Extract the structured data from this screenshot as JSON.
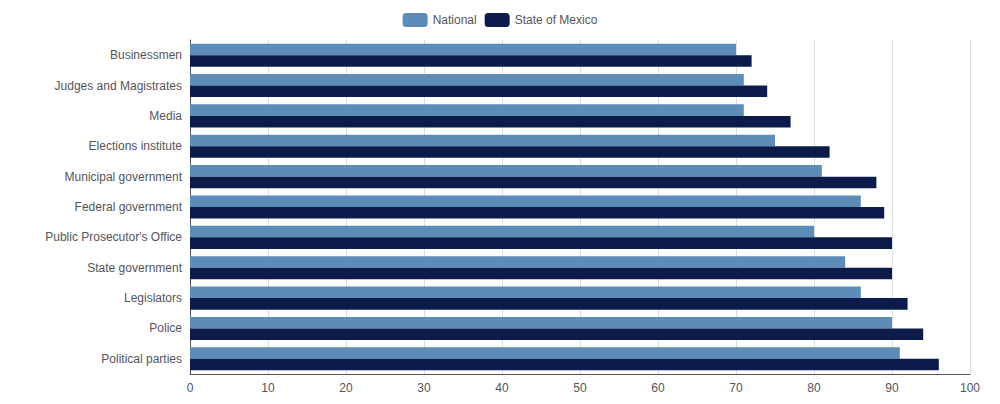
{
  "chart_data": {
    "type": "bar",
    "orientation": "horizontal",
    "categories": [
      "Political parties",
      "Police",
      "Legislators",
      "State government",
      "Public Prosecutor's Office",
      "Federal government",
      "Municipal government",
      "Elections institute",
      "Media",
      "Judges and Magistrates",
      "Businessmen"
    ],
    "series": [
      {
        "name": "National",
        "color": "#5b8db8",
        "values": [
          91,
          90,
          86,
          84,
          80,
          86,
          81,
          75,
          71,
          71,
          70
        ]
      },
      {
        "name": "State of Mexico",
        "color": "#0d1b4b",
        "values": [
          96,
          94,
          92,
          90,
          90,
          89,
          88,
          82,
          77,
          74,
          72
        ]
      }
    ],
    "xlim": [
      0,
      100
    ],
    "xticks": [
      0,
      10,
      20,
      30,
      40,
      50,
      60,
      70,
      80,
      90,
      100
    ],
    "grid": true,
    "legend": "top"
  }
}
